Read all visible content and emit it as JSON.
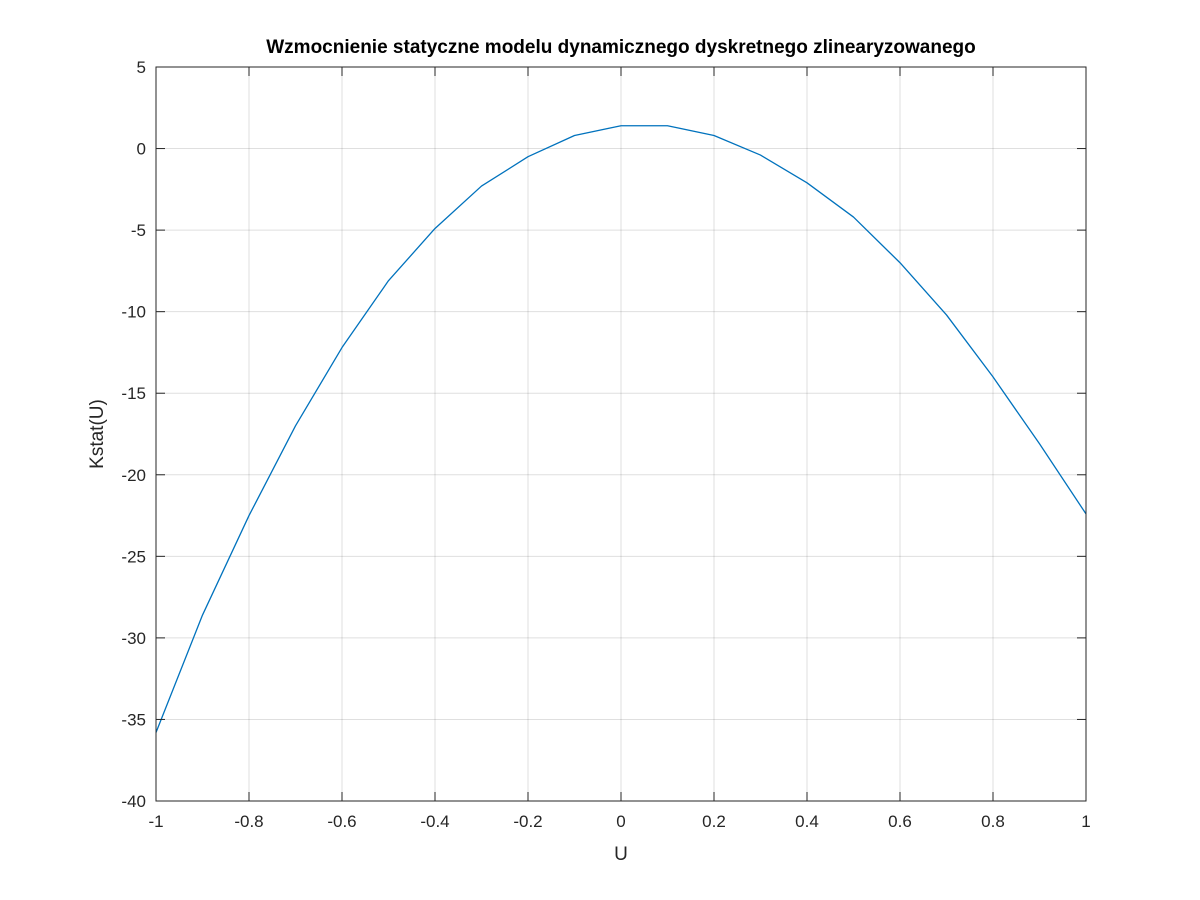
{
  "chart_data": {
    "type": "line",
    "title": "Wzmocnienie statyczne modelu dynamicznego dyskretnego zlinearyzowanego",
    "xlabel": "U",
    "ylabel": "Kstat(U)",
    "xlim": [
      -1,
      1
    ],
    "ylim": [
      -40,
      5
    ],
    "xticks": [
      -1,
      -0.8,
      -0.6,
      -0.4,
      -0.2,
      0,
      0.2,
      0.4,
      0.6,
      0.8,
      1
    ],
    "xtick_labels": [
      "-1",
      "-0.8",
      "-0.6",
      "-0.4",
      "-0.2",
      "0",
      "0.2",
      "0.4",
      "0.6",
      "0.8",
      "1"
    ],
    "yticks": [
      5,
      0,
      -5,
      -10,
      -15,
      -20,
      -25,
      -30,
      -35,
      -40
    ],
    "ytick_labels": [
      "5",
      "0",
      "-5",
      "-10",
      "-15",
      "-20",
      "-25",
      "-30",
      "-35",
      "-40"
    ],
    "grid": true,
    "series": [
      {
        "color": "#0072bd",
        "x": [
          -1,
          -0.9,
          -0.8,
          -0.7,
          -0.6,
          -0.5,
          -0.4,
          -0.3,
          -0.2,
          -0.1,
          0,
          0.1,
          0.2,
          0.3,
          0.4,
          0.5,
          0.6,
          0.7,
          0.8,
          0.9,
          1
        ],
        "y": [
          -35.8,
          -28.6,
          -22.5,
          -17.0,
          -12.2,
          -8.1,
          -4.9,
          -2.3,
          -0.5,
          0.8,
          1.4,
          1.4,
          0.8,
          -0.4,
          -2.1,
          -4.2,
          -7.0,
          -10.2,
          -14.0,
          -18.1,
          -22.4
        ]
      }
    ]
  }
}
